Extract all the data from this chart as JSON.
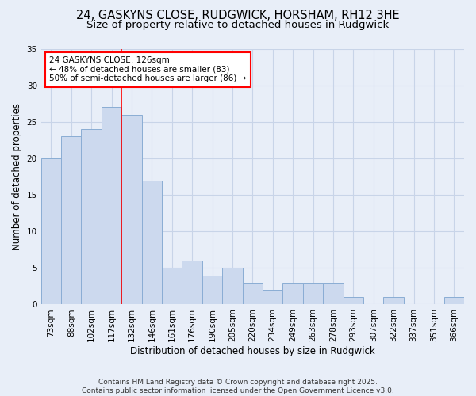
{
  "title": "24, GASKYNS CLOSE, RUDGWICK, HORSHAM, RH12 3HE",
  "subtitle": "Size of property relative to detached houses in Rudgwick",
  "xlabel": "Distribution of detached houses by size in Rudgwick",
  "ylabel": "Number of detached properties",
  "categories": [
    "73sqm",
    "88sqm",
    "102sqm",
    "117sqm",
    "132sqm",
    "146sqm",
    "161sqm",
    "176sqm",
    "190sqm",
    "205sqm",
    "220sqm",
    "234sqm",
    "249sqm",
    "263sqm",
    "278sqm",
    "293sqm",
    "307sqm",
    "322sqm",
    "337sqm",
    "351sqm",
    "366sqm"
  ],
  "values": [
    20,
    23,
    24,
    27,
    26,
    17,
    5,
    6,
    4,
    5,
    3,
    2,
    3,
    3,
    3,
    1,
    0,
    1,
    0,
    0,
    1
  ],
  "bar_color": "#ccd9ee",
  "bar_edge_color": "#8aadd4",
  "annotation_text": "24 GASKYNS CLOSE: 126sqm\n← 48% of detached houses are smaller (83)\n50% of semi-detached houses are larger (86) →",
  "annotation_box_color": "white",
  "annotation_box_edge_color": "red",
  "vline_color": "red",
  "vline_x": 4,
  "ylim": [
    0,
    35
  ],
  "yticks": [
    0,
    5,
    10,
    15,
    20,
    25,
    30,
    35
  ],
  "grid_color": "#c8d4e8",
  "background_color": "#e8eef8",
  "footer": "Contains HM Land Registry data © Crown copyright and database right 2025.\nContains public sector information licensed under the Open Government Licence v3.0.",
  "title_fontsize": 10.5,
  "subtitle_fontsize": 9.5,
  "axis_label_fontsize": 8.5,
  "tick_fontsize": 7.5,
  "annotation_fontsize": 7.5,
  "footer_fontsize": 6.5
}
